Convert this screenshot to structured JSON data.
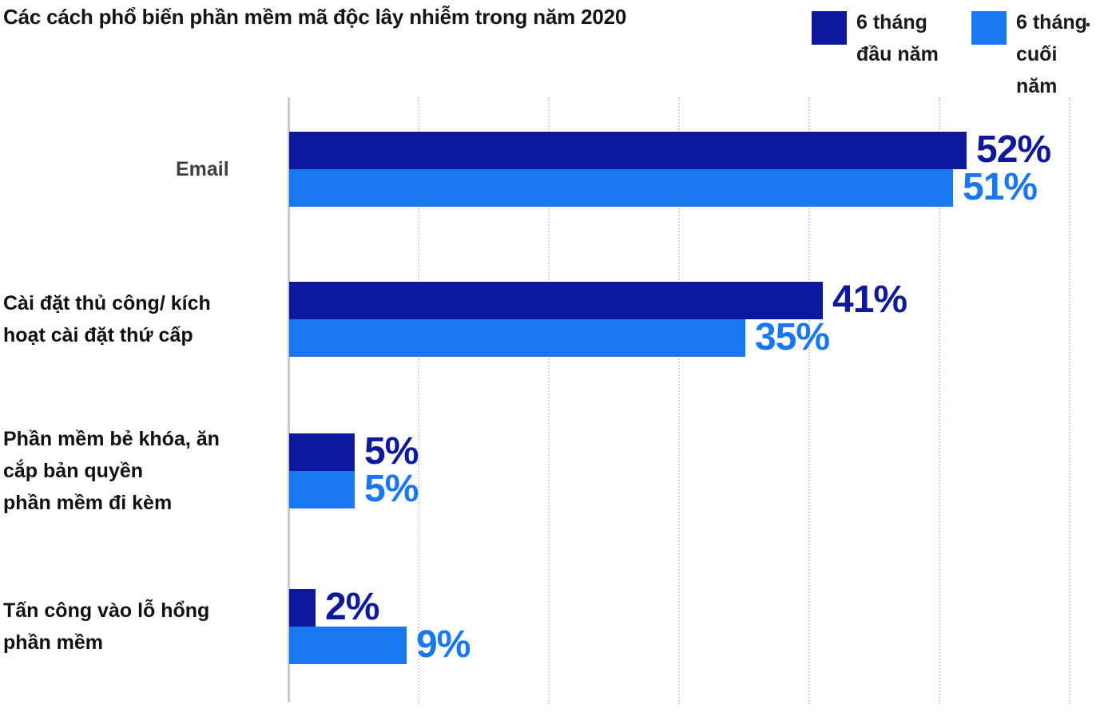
{
  "title": "Các cách phổ biến phần mềm mã độc lây nhiễm trong năm 2020",
  "legend": [
    {
      "label": "6 tháng\nđầu năm",
      "color": "#0D189C"
    },
    {
      "label": "6 tháng\ncuối\nnăm",
      "color": "#1A77F2"
    }
  ],
  "misc": {
    "stray_mark": "."
  },
  "colors": {
    "first_half_bar": "#0D189C",
    "second_half_bar": "#1A77F2",
    "axis_line": "#c9c9c9",
    "gridline": "#d2d2d2",
    "title_text": "#151515"
  },
  "chart_data": {
    "type": "bar",
    "orientation": "horizontal",
    "title": "Các cách phổ biến phần mềm mã độc lây nhiễm trong năm 2020",
    "categories": [
      "Email",
      "Cài đặt thủ công/ kích hoạt cài đặt thứ cấp",
      "Phần mềm bẻ khóa, ăn cắp bản quyền phần mềm đi kèm",
      "Tấn công vào lỗ hổng phần mềm"
    ],
    "category_display_lines": [
      "Email",
      "Cài đặt thủ công/ kích\nhoạt cài đặt thứ cấp",
      "Phần mềm bẻ khóa, ăn\ncắp bản quyền\nphần mềm đi kèm",
      "Tấn công vào lỗ hổng\nphần mềm"
    ],
    "category_label_colors": [
      "#3f3f3f",
      "#111111",
      "#111111",
      "#111111"
    ],
    "series": [
      {
        "name": "6 tháng đầu năm",
        "color": "#0D189C",
        "values": [
          52,
          41,
          5,
          2
        ]
      },
      {
        "name": "6 tháng cuối năm",
        "color": "#1A77F2",
        "values": [
          51,
          35,
          5,
          9
        ]
      }
    ],
    "value_labels": [
      [
        "52%",
        "51%"
      ],
      [
        "41%",
        "35%"
      ],
      [
        "5%",
        "5%"
      ],
      [
        "2%",
        "9%"
      ]
    ],
    "unit": "%",
    "xlim": [
      0,
      60
    ],
    "grid_step": 10,
    "grid": "dotted-vertical",
    "legend_position": "top-right",
    "value_label_position": "right-of-bar"
  }
}
